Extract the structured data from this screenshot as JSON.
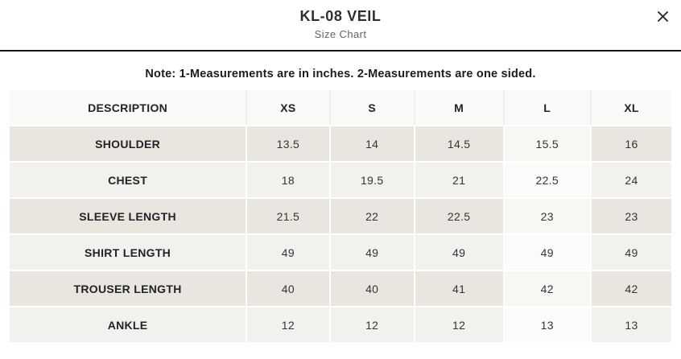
{
  "header": {
    "title": "KL-08 VEIL",
    "subtitle": "Size Chart"
  },
  "note": "Note: 1-Measurements are in inches. 2-Measurements are one sided.",
  "table": {
    "columns": [
      "DESCRIPTION",
      "XS",
      "S",
      "M",
      "L",
      "XL"
    ],
    "highlighted_column": "L",
    "rows": [
      {
        "label": "SHOULDER",
        "values": [
          "13.5",
          "14",
          "14.5",
          "15.5",
          "16"
        ]
      },
      {
        "label": "CHEST",
        "values": [
          "18",
          "19.5",
          "21",
          "22.5",
          "24"
        ]
      },
      {
        "label": "SLEEVE LENGTH",
        "values": [
          "21.5",
          "22",
          "22.5",
          "23",
          "23"
        ]
      },
      {
        "label": "SHIRT LENGTH",
        "values": [
          "49",
          "49",
          "49",
          "49",
          "49"
        ]
      },
      {
        "label": "TROUSER LENGTH",
        "values": [
          "40",
          "40",
          "41",
          "42",
          "42"
        ]
      },
      {
        "label": "ANKLE",
        "values": [
          "12",
          "12",
          "12",
          "13",
          "13"
        ]
      }
    ]
  },
  "colors": {
    "row_beige": "#e8e6df",
    "row_light": "#f2f1ee",
    "row_header": "#fafaf9",
    "highlight_cell": "#f8f7f4",
    "divider": "#161616",
    "text": "#2b2b30"
  }
}
